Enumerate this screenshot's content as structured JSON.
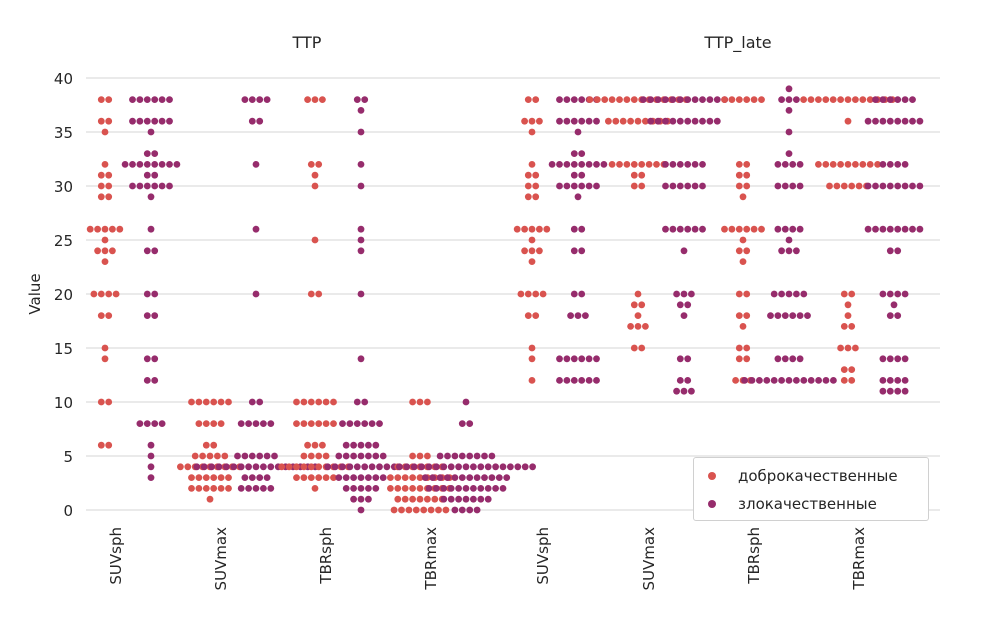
{
  "colors": {
    "benign": "#d9534f",
    "malignant": "#962c6c",
    "grid": "#d4d4d4",
    "text": "#262626"
  },
  "chart_data": {
    "type": "scatter",
    "subtype": "swarm",
    "ylabel": "Value",
    "ylim": [
      -1,
      41
    ],
    "yticks": [
      0,
      5,
      10,
      15,
      20,
      25,
      30,
      35,
      40
    ],
    "grid": true,
    "legend": {
      "placement": "lower-right",
      "entries": [
        "доброкачественные",
        "злокачественные"
      ]
    },
    "categories": [
      "SUVsph",
      "SUVmax",
      "TBRsph",
      "TBRmax"
    ],
    "panels": [
      {
        "title": "TTP",
        "groups": [
          {
            "category": "SUVsph",
            "series": [
              {
                "name": "доброкачественные",
                "values": {
                  "38": 2,
                  "36": 2,
                  "35": 1,
                  "32": 1,
                  "31": 2,
                  "30": 2,
                  "29": 2,
                  "26": 5,
                  "25": 1,
                  "24": 3,
                  "23": 1,
                  "20": 4,
                  "18": 2,
                  "15": 1,
                  "14": 1,
                  "10": 2,
                  "6": 2
                }
              },
              {
                "name": "злокачественные",
                "values": {
                  "38": 6,
                  "36": 6,
                  "35": 1,
                  "33": 2,
                  "32": 8,
                  "31": 2,
                  "30": 6,
                  "29": 1,
                  "26": 1,
                  "24": 2,
                  "20": 2,
                  "18": 2,
                  "14": 2,
                  "12": 2,
                  "8": 4,
                  "6": 1,
                  "5": 1,
                  "4": 1,
                  "3": 1
                }
              }
            ]
          },
          {
            "category": "SUVmax",
            "series": [
              {
                "name": "доброкачественные",
                "values": {
                  "10": 6,
                  "8": 4,
                  "6": 2,
                  "5": 5,
                  "4": 9,
                  "3": 6,
                  "2": 6,
                  "1": 1
                }
              },
              {
                "name": "злокачественные",
                "values": {
                  "38": 4,
                  "36": 2,
                  "32": 1,
                  "26": 1,
                  "20": 1,
                  "10": 2,
                  "8": 5,
                  "5": 6,
                  "4": 17,
                  "3": 4,
                  "2": 5
                }
              }
            ]
          },
          {
            "category": "TBRsph",
            "series": [
              {
                "name": "доброкачественные",
                "values": {
                  "38": 3,
                  "32": 2,
                  "31": 1,
                  "30": 1,
                  "25": 1,
                  "20": 2,
                  "10": 6,
                  "8": 6,
                  "6": 3,
                  "5": 4,
                  "4": 10,
                  "3": 6,
                  "2": 1
                }
              },
              {
                "name": "злокачественные",
                "values": {
                  "38": 2,
                  "37": 1,
                  "35": 1,
                  "32": 1,
                  "30": 1,
                  "26": 1,
                  "25": 1,
                  "24": 1,
                  "20": 1,
                  "14": 1,
                  "10": 2,
                  "8": 6,
                  "6": 5,
                  "5": 7,
                  "4": 10,
                  "3": 7,
                  "2": 5,
                  "1": 3,
                  "0": 1
                }
              }
            ]
          },
          {
            "category": "TBRmax",
            "series": [
              {
                "name": "доброкачественные",
                "values": {
                  "10": 3,
                  "5": 3,
                  "4": 7,
                  "3": 9,
                  "2": 9,
                  "1": 7,
                  "0": 8
                }
              },
              {
                "name": "злокачественные",
                "values": {
                  "10": 1,
                  "8": 2,
                  "5": 8,
                  "4": 19,
                  "3": 12,
                  "2": 11,
                  "1": 7,
                  "0": 4
                }
              }
            ]
          }
        ]
      },
      {
        "title": "TTP_late",
        "groups": [
          {
            "category": "SUVsph",
            "series": [
              {
                "name": "доброкачественные",
                "values": {
                  "38": 2,
                  "36": 3,
                  "35": 1,
                  "32": 1,
                  "31": 2,
                  "30": 2,
                  "29": 2,
                  "26": 5,
                  "25": 1,
                  "24": 3,
                  "23": 1,
                  "20": 4,
                  "18": 2,
                  "15": 1,
                  "14": 1,
                  "12": 1
                }
              },
              {
                "name": "злокачественные",
                "values": {
                  "38": 6,
                  "36": 6,
                  "35": 1,
                  "33": 2,
                  "32": 8,
                  "31": 2,
                  "30": 6,
                  "29": 1,
                  "26": 2,
                  "24": 2,
                  "20": 2,
                  "18": 3,
                  "14": 6,
                  "12": 6
                }
              }
            ]
          },
          {
            "category": "SUVmax",
            "series": [
              {
                "name": "доброкачественные",
                "values": {
                  "38": 14,
                  "36": 9,
                  "32": 8,
                  "31": 2,
                  "30": 2,
                  "20": 1,
                  "19": 2,
                  "18": 1,
                  "17": 3,
                  "15": 2
                }
              },
              {
                "name": "злокачественные",
                "values": {
                  "38": 12,
                  "36": 10,
                  "32": 6,
                  "30": 6,
                  "26": 6,
                  "24": 1,
                  "20": 3,
                  "19": 2,
                  "18": 1,
                  "14": 2,
                  "12": 2,
                  "11": 3
                }
              }
            ]
          },
          {
            "category": "TBRsph",
            "series": [
              {
                "name": "доброкачественные",
                "values": {
                  "38": 6,
                  "32": 2,
                  "31": 2,
                  "30": 2,
                  "29": 1,
                  "26": 6,
                  "25": 1,
                  "24": 2,
                  "23": 1,
                  "20": 2,
                  "18": 2,
                  "17": 1,
                  "15": 2,
                  "14": 2,
                  "12": 3
                }
              },
              {
                "name": "злокачественные",
                "values": {
                  "39": 1,
                  "38": 3,
                  "37": 1,
                  "35": 1,
                  "33": 1,
                  "32": 4,
                  "30": 4,
                  "26": 4,
                  "25": 1,
                  "24": 3,
                  "20": 5,
                  "18": 6,
                  "14": 4,
                  "12": 13
                }
              }
            ]
          },
          {
            "category": "TBRmax",
            "series": [
              {
                "name": "доброкачественные",
                "values": {
                  "38": 13,
                  "36": 1,
                  "32": 9,
                  "30": 6,
                  "20": 2,
                  "19": 1,
                  "18": 1,
                  "17": 2,
                  "15": 3,
                  "13": 2,
                  "12": 2
                }
              },
              {
                "name": "злокачественные",
                "values": {
                  "38": 6,
                  "36": 8,
                  "32": 4,
                  "30": 8,
                  "26": 8,
                  "24": 2,
                  "20": 4,
                  "19": 1,
                  "18": 2,
                  "14": 4,
                  "12": 4,
                  "11": 4
                }
              }
            ]
          }
        ]
      }
    ]
  }
}
